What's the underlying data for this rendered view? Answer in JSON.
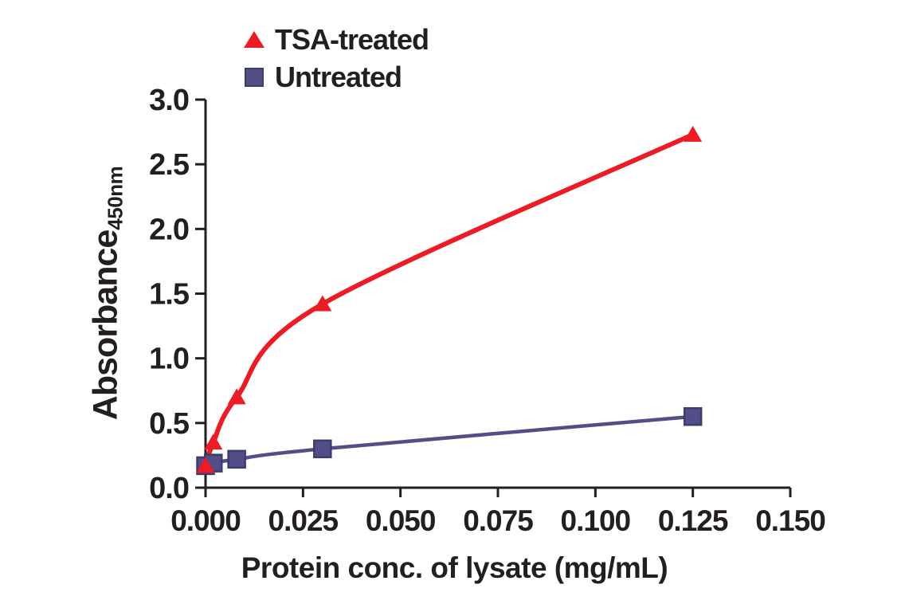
{
  "colors": {
    "background": "#ffffff",
    "text": "#231f20",
    "axis": "#231f20",
    "tsa_red": "#ed1c24",
    "untreated_indigo": "#514e88",
    "untreated_indigo_edge": "#3e3b6d"
  },
  "legend": {
    "items": [
      {
        "label": "TSA-treated",
        "marker": "triangle-icon",
        "color": "#ed1c24"
      },
      {
        "label": "Untreated",
        "marker": "square-icon",
        "color": "#514e88"
      }
    ]
  },
  "chart_data": {
    "type": "line",
    "title": "",
    "xlabel": "Protein conc. of lysate (mg/mL)",
    "ylabel": "Absorbance",
    "ylabel_subscript": "450nm",
    "xlim": [
      0,
      0.15
    ],
    "ylim": [
      0.0,
      3.0
    ],
    "grid": false,
    "legend_position": "top-left",
    "x_ticks": [
      0.0,
      0.025,
      0.05,
      0.075,
      0.1,
      0.125,
      0.15
    ],
    "x_tick_labels": [
      "0.000",
      "0.025",
      "0.050",
      "0.075",
      "0.100",
      "0.125",
      "0.150"
    ],
    "y_ticks": [
      0.0,
      0.5,
      1.0,
      1.5,
      2.0,
      2.5,
      3.0
    ],
    "y_tick_labels": [
      "0.0",
      "0.5",
      "1.0",
      "1.5",
      "2.0",
      "2.5",
      "3.0"
    ],
    "series": [
      {
        "name": "TSA-treated",
        "marker": "triangle",
        "color": "#ed1c24",
        "line_width": 6,
        "x": [
          0.0,
          0.002,
          0.008,
          0.03,
          0.125
        ],
        "y": [
          0.17,
          0.35,
          0.7,
          1.42,
          2.73
        ]
      },
      {
        "name": "Untreated",
        "marker": "square",
        "color": "#514e88",
        "marker_edge": "#3e3b6d",
        "line_width": 4.5,
        "x": [
          0.0,
          0.002,
          0.008,
          0.03,
          0.125
        ],
        "y": [
          0.17,
          0.19,
          0.22,
          0.3,
          0.55
        ]
      }
    ]
  }
}
